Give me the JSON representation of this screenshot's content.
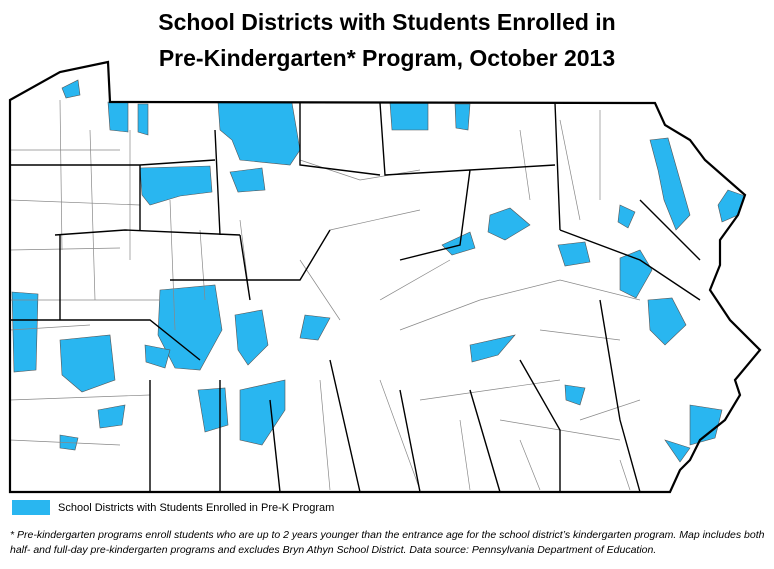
{
  "title": {
    "lines": [
      "School Districts with Students Enrolled in",
      "Pre-Kindergarten* Program, October 2013"
    ]
  },
  "legend": {
    "label": "School Districts with Students Enrolled in Pre-K Program"
  },
  "footnote": "* Pre-kindergarten programs enroll students who are up to 2 years younger than the entrance age for the school district’s kindergarten program. Map includes both half- and full-day pre-kindergarten programs and excludes Bryn Athyn School District. Data source: Pennsylvania Department of Education."
}
